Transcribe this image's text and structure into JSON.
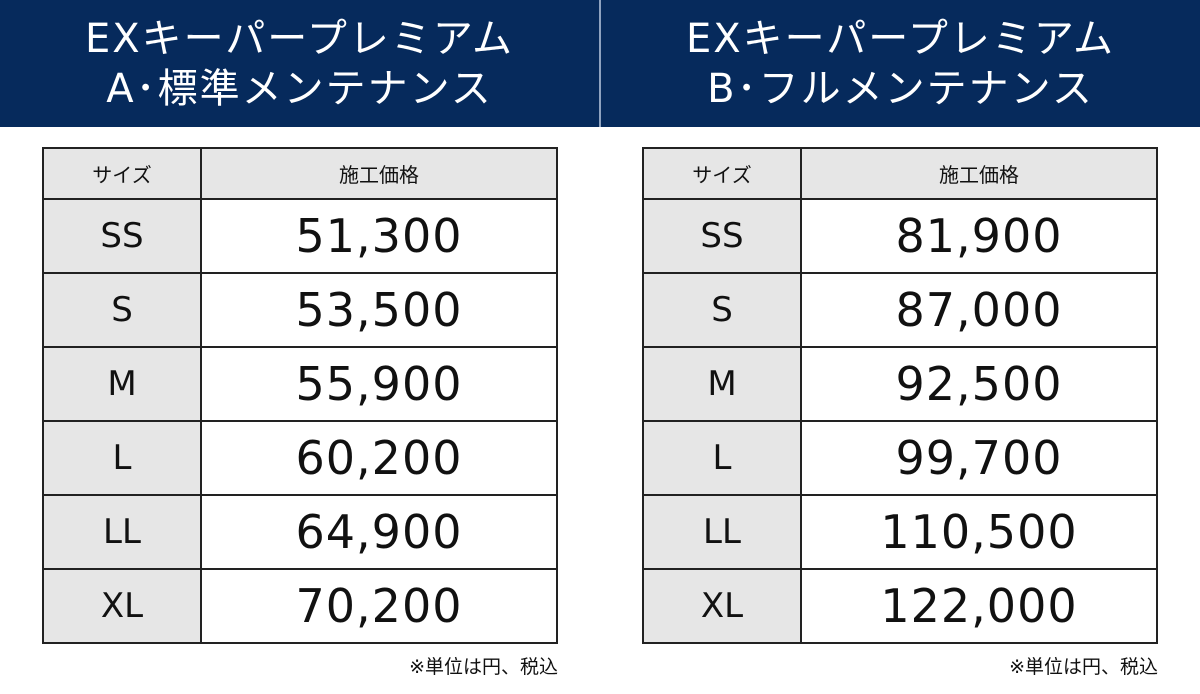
{
  "plans": [
    {
      "title_line1": "EXキーパープレミアム",
      "title_line2": "A･標準メンテナンス",
      "header": {
        "size": "サイズ",
        "price": "施工価格"
      },
      "rows": [
        {
          "size": "SS",
          "price": "51,300"
        },
        {
          "size": "S",
          "price": "53,500"
        },
        {
          "size": "M",
          "price": "55,900"
        },
        {
          "size": "L",
          "price": "60,200"
        },
        {
          "size": "LL",
          "price": "64,900"
        },
        {
          "size": "XL",
          "price": "70,200"
        }
      ],
      "note": "※単位は円、税込"
    },
    {
      "title_line1": "EXキーパープレミアム",
      "title_line2": "B･フルメンテナンス",
      "header": {
        "size": "サイズ",
        "price": "施工価格"
      },
      "rows": [
        {
          "size": "SS",
          "price": "81,900"
        },
        {
          "size": "S",
          "price": "87,000"
        },
        {
          "size": "M",
          "price": "92,500"
        },
        {
          "size": "L",
          "price": "99,700"
        },
        {
          "size": "LL",
          "price": "110,500"
        },
        {
          "size": "XL",
          "price": "122,000"
        }
      ],
      "note": "※単位は円、税込"
    }
  ],
  "colors": {
    "banner": "#062a5c",
    "cell_shade": "#e6e6e6"
  }
}
